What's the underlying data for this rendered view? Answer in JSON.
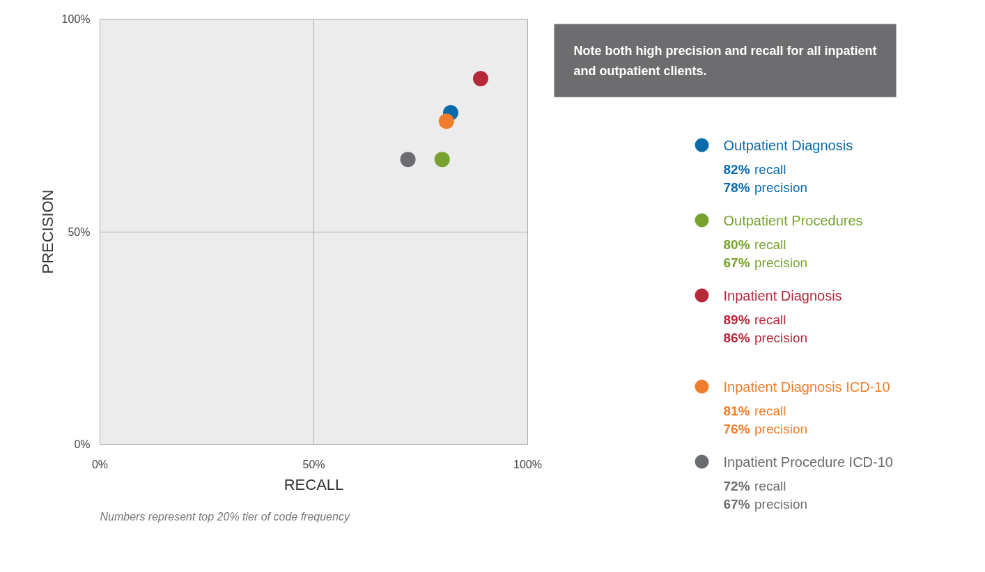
{
  "chart_data": {
    "type": "scatter",
    "xlabel": "RECALL",
    "ylabel": "PRECISION",
    "xlim": [
      0,
      100
    ],
    "ylim": [
      0,
      100
    ],
    "xticks": [
      {
        "value": 0,
        "label": "0%"
      },
      {
        "value": 50,
        "label": "50%"
      },
      {
        "value": 100,
        "label": "100%"
      }
    ],
    "yticks": [
      {
        "value": 0,
        "label": "0%"
      },
      {
        "value": 50,
        "label": "50%"
      },
      {
        "value": 100,
        "label": "100%"
      }
    ],
    "grid": true,
    "legend": "right",
    "marker": "circle",
    "series": [
      {
        "name": "Outpatient Diagnosis",
        "color": "#0a6aaa",
        "x": [
          82
        ],
        "values": [
          78
        ]
      },
      {
        "name": "Outpatient Procedures",
        "color": "#77a22f",
        "x": [
          80
        ],
        "values": [
          67
        ]
      },
      {
        "name": "Inpatient Diagnosis",
        "color": "#b5283a",
        "x": [
          89
        ],
        "values": [
          86
        ]
      },
      {
        "name": "Inpatient Diagnosis ICD-10",
        "color": "#ef7d2b",
        "x": [
          81
        ],
        "values": [
          76
        ]
      },
      {
        "name": "Inpatient Procedure ICD-10",
        "color": "#6b6c70",
        "x": [
          72
        ],
        "values": [
          67
        ]
      }
    ],
    "annotations": [
      "Note both high precision and recall for all inpatient\nand outpatient clients.",
      "Numbers represent top 20% tier of code frequency",
      "82% recall",
      "78% precision",
      "80% recall",
      "67% precision",
      "89% recall",
      "86% precision",
      "81% recall",
      "76% precision",
      "72% recall",
      "67% precision"
    ]
  }
}
